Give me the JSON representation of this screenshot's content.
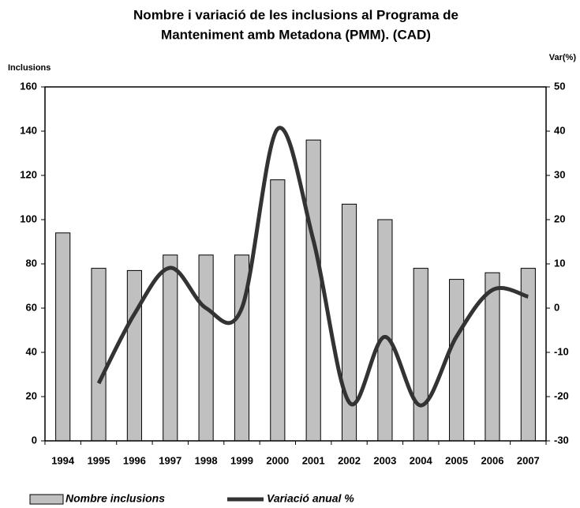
{
  "chart_data": {
    "type": "bar-line",
    "title": [
      "Nombre i variació de les inclusions al Programa de",
      "Manteniment amb Metadona (PMM). (CAD)"
    ],
    "y_label": "Inclusions",
    "y2_label": "Var(%)",
    "categories": [
      "1994",
      "1995",
      "1996",
      "1997",
      "1998",
      "1999",
      "2000",
      "2001",
      "2002",
      "2003",
      "2004",
      "2005",
      "2006",
      "2007"
    ],
    "series": [
      {
        "name": "Nombre inclusions",
        "type": "bar",
        "color": "#c0c0c0",
        "values": [
          94,
          78,
          77,
          84,
          84,
          84,
          118,
          136,
          107,
          100,
          78,
          73,
          76,
          78
        ]
      },
      {
        "name": "Variació anual %",
        "type": "line",
        "axis": "y2",
        "color": "#333333",
        "values": [
          null,
          -17,
          -1.3,
          9.1,
          0,
          0,
          40.5,
          15.3,
          -21.3,
          -6.5,
          -22,
          -6.4,
          4.1,
          2.6
        ]
      }
    ],
    "ylim": [
      0,
      160
    ],
    "yticks": [
      0,
      20,
      40,
      60,
      80,
      100,
      120,
      140,
      160
    ],
    "y2lim": [
      -30,
      50
    ],
    "y2ticks": [
      -30,
      -20,
      -10,
      0,
      10,
      20,
      30,
      40,
      50
    ],
    "grid": false
  }
}
